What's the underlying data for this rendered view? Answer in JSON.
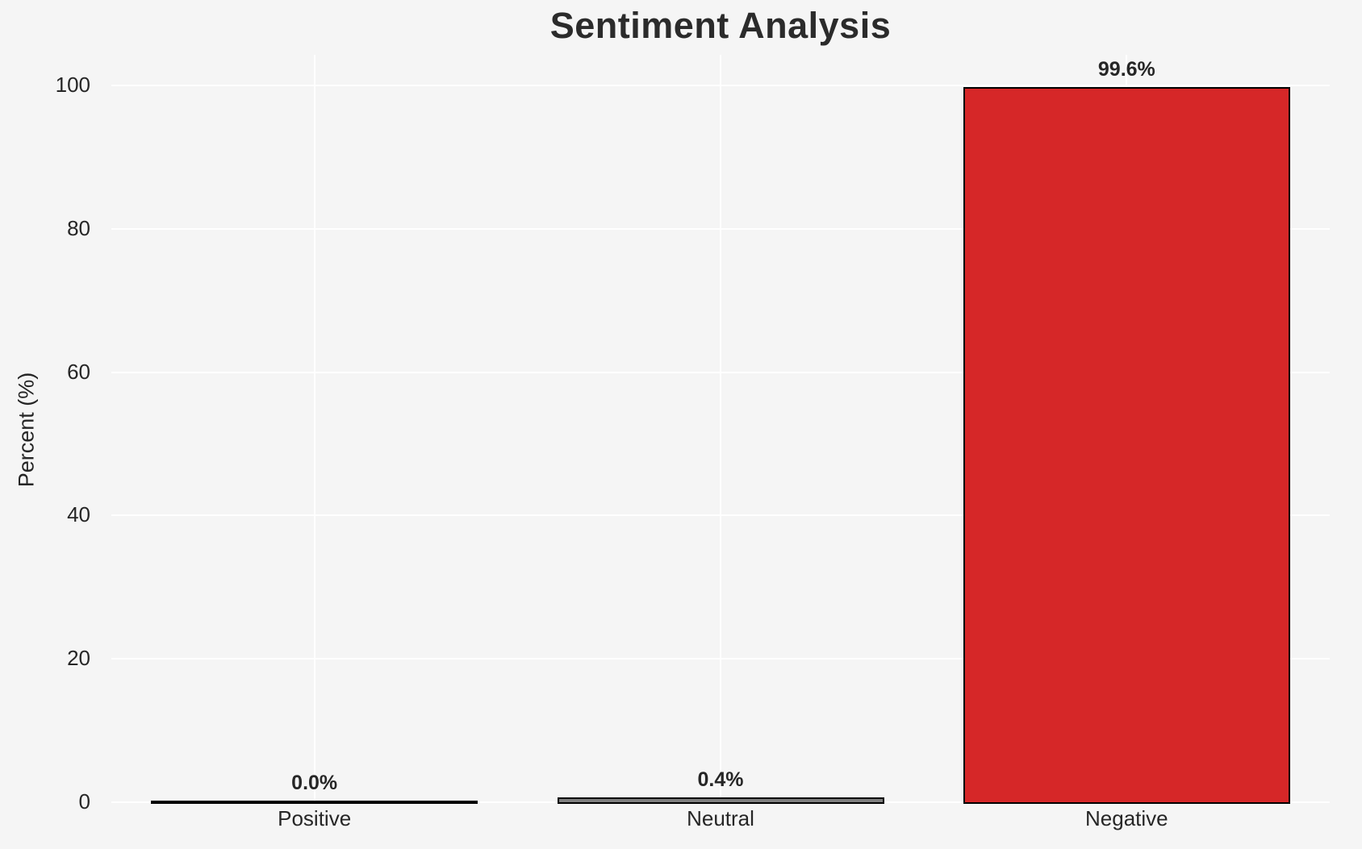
{
  "chart": {
    "title": "Sentiment Analysis",
    "ylabel": "Percent (%)",
    "background_color": "#f5f5f5",
    "grid_color": "#ffffff",
    "text_color": "#262626",
    "bar_edge_color": "#000000"
  },
  "chart_data": {
    "type": "bar",
    "title": "Sentiment Analysis",
    "xlabel": "",
    "ylabel": "Percent (%)",
    "categories": [
      "Positive",
      "Neutral",
      "Negative"
    ],
    "values": [
      0.0,
      0.4,
      99.6
    ],
    "value_labels": [
      "0.0%",
      "0.4%",
      "99.6%"
    ],
    "bar_colors": [
      "#2ca02c",
      "#7f7f7f",
      "#d62728"
    ],
    "yticks": [
      0,
      20,
      40,
      60,
      80,
      100
    ],
    "ylim": [
      0,
      105
    ],
    "grid": true,
    "legend": false
  }
}
